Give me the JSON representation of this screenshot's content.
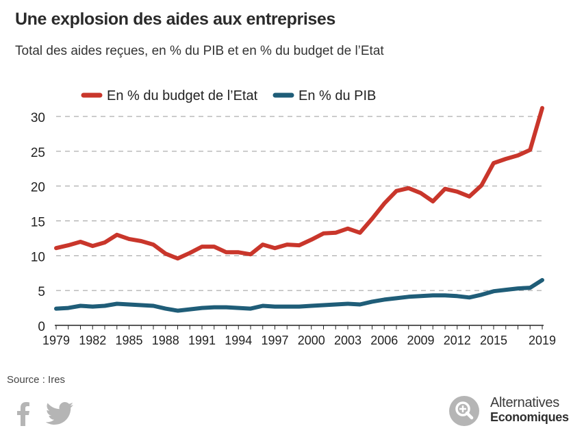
{
  "header": {
    "title": "Une explosion des aides aux entreprises",
    "subtitle": "Total des aides reçues, en % du PIB et en % du budget de l’Etat"
  },
  "footer": {
    "source": "Source : Ires",
    "brand_line1": "Alternatives",
    "brand_line2": "Economiques",
    "icons": [
      "facebook-icon",
      "twitter-icon",
      "alternatives-economiques-logo-icon"
    ]
  },
  "colors": {
    "budget": "#c9362b",
    "pib": "#1f5d78",
    "grid": "#9a9a9a",
    "icons": "#b5b5b5"
  },
  "chart_data": {
    "type": "line",
    "title": "Une explosion des aides aux entreprises",
    "subtitle": "Total des aides reçues, en % du PIB et en % du budget de l’Etat",
    "x": [
      1979,
      1980,
      1981,
      1982,
      1983,
      1984,
      1985,
      1986,
      1987,
      1988,
      1989,
      1990,
      1991,
      1992,
      1993,
      1994,
      1995,
      1996,
      1997,
      1998,
      1999,
      2000,
      2001,
      2002,
      2003,
      2004,
      2005,
      2006,
      2007,
      2008,
      2009,
      2010,
      2011,
      2012,
      2013,
      2014,
      2015,
      2016,
      2017,
      2018,
      2019
    ],
    "xticks": [
      1979,
      1982,
      1985,
      1988,
      1991,
      1994,
      1997,
      2000,
      2003,
      2006,
      2009,
      2012,
      2015,
      2019
    ],
    "ylim": [
      0,
      31
    ],
    "yticks": [
      0,
      5,
      10,
      15,
      20,
      25,
      30
    ],
    "grid": "horizontal dashed",
    "legend": "top",
    "series": [
      {
        "name": "En % du budget de l’Etat",
        "color": "#c9362b",
        "values": [
          11.1,
          11.5,
          12.0,
          11.4,
          11.9,
          13.0,
          12.4,
          12.1,
          11.6,
          10.3,
          9.6,
          10.4,
          11.3,
          11.3,
          10.5,
          10.5,
          10.2,
          11.6,
          11.1,
          11.6,
          11.5,
          12.3,
          13.2,
          13.3,
          13.9,
          13.3,
          15.3,
          17.5,
          19.3,
          19.7,
          19.0,
          17.8,
          19.6,
          19.2,
          18.5,
          20.1,
          23.3,
          23.9,
          24.4,
          25.2,
          31.2
        ]
      },
      {
        "name": "En % du PIB",
        "color": "#1f5d78",
        "values": [
          2.4,
          2.5,
          2.8,
          2.7,
          2.8,
          3.1,
          3.0,
          2.9,
          2.8,
          2.4,
          2.1,
          2.3,
          2.5,
          2.6,
          2.6,
          2.5,
          2.4,
          2.8,
          2.7,
          2.7,
          2.7,
          2.8,
          2.9,
          3.0,
          3.1,
          3.0,
          3.4,
          3.7,
          3.9,
          4.1,
          4.2,
          4.3,
          4.3,
          4.2,
          4.0,
          4.4,
          4.9,
          5.1,
          5.3,
          5.4,
          6.5
        ]
      }
    ]
  }
}
